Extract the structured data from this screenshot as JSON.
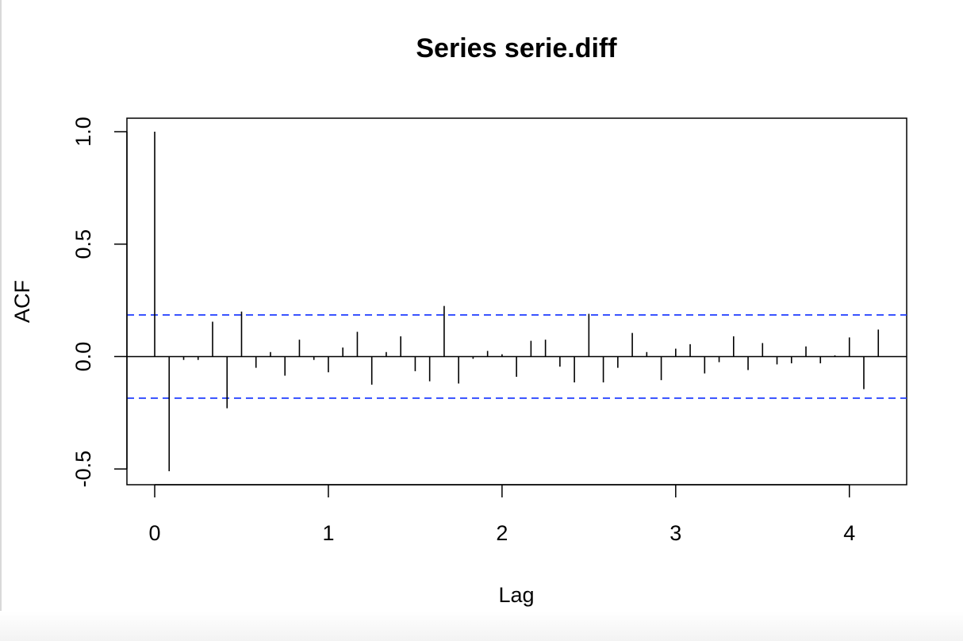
{
  "chart_data": {
    "type": "bar",
    "title": "Series  serie.diff",
    "xlabel": "Lag",
    "ylabel": "ACF",
    "xlim": [
      -0.16,
      4.33
    ],
    "ylim": [
      -0.57,
      1.06
    ],
    "x_ticks": [
      "0",
      "1",
      "2",
      "3",
      "4"
    ],
    "y_ticks": [
      "-0.5",
      "0.0",
      "0.5",
      "1.0"
    ],
    "lags": [
      0.0,
      0.0833,
      0.1667,
      0.25,
      0.3333,
      0.4167,
      0.5,
      0.5833,
      0.6667,
      0.75,
      0.8333,
      0.9167,
      1.0,
      1.0833,
      1.1667,
      1.25,
      1.3333,
      1.4167,
      1.5,
      1.5833,
      1.6667,
      1.75,
      1.8333,
      1.9167,
      2.0,
      2.0833,
      2.1667,
      2.25,
      2.3333,
      2.4167,
      2.5,
      2.5833,
      2.6667,
      2.75,
      2.8333,
      2.9167,
      3.0,
      3.0833,
      3.1667,
      3.25,
      3.3333,
      3.4167,
      3.5,
      3.5833,
      3.6667,
      3.75,
      3.8333,
      3.9167,
      4.0,
      4.0833,
      4.1667
    ],
    "acf": [
      1.0,
      -0.51,
      -0.015,
      -0.015,
      0.155,
      -0.23,
      0.2,
      -0.05,
      0.02,
      -0.085,
      0.075,
      -0.015,
      -0.07,
      0.04,
      0.11,
      -0.125,
      0.02,
      0.09,
      -0.065,
      -0.11,
      0.225,
      -0.12,
      -0.01,
      0.025,
      0.01,
      -0.09,
      0.07,
      0.075,
      -0.045,
      -0.115,
      0.19,
      -0.115,
      -0.05,
      0.105,
      0.02,
      -0.105,
      0.035,
      0.055,
      -0.075,
      -0.025,
      0.09,
      -0.06,
      0.06,
      -0.035,
      -0.03,
      0.045,
      -0.03,
      0.005,
      0.085,
      -0.145,
      0.12
    ],
    "confidence_bound": 0.185,
    "confidence_color": "#1f3cff",
    "bar_color": "#000000",
    "grid": false
  }
}
